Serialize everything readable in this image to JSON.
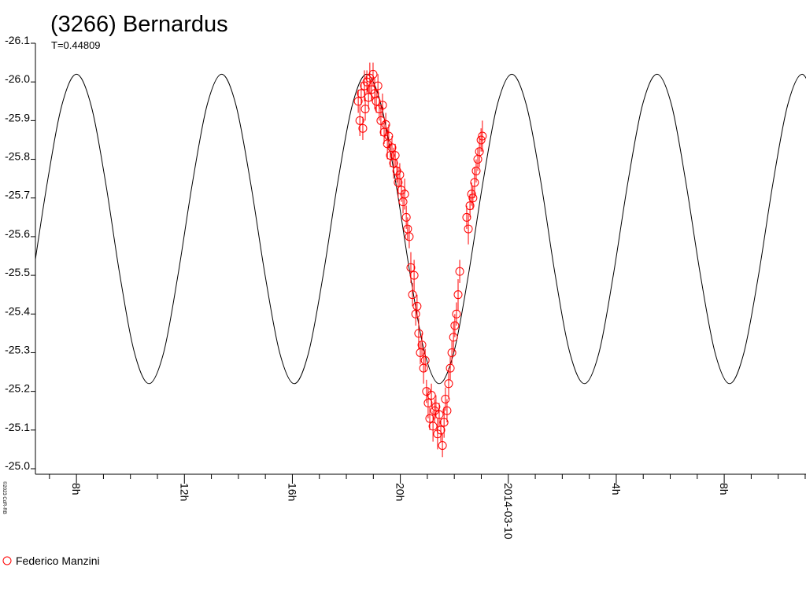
{
  "chart_data": {
    "type": "scatter",
    "title": "(3266) Bernardus",
    "subtitle": "T=0.44809",
    "note": "©2023 CdR-RB",
    "xlim": [
      6.48,
      35.03
    ],
    "xticks": [
      {
        "value": 8,
        "label": "8h"
      },
      {
        "value": 12,
        "label": "12h"
      },
      {
        "value": 16,
        "label": "16h"
      },
      {
        "value": 20,
        "label": "20h"
      },
      {
        "value": 24,
        "label": "2014-03-10"
      },
      {
        "value": 28,
        "label": "4h"
      },
      {
        "value": 32,
        "label": "8h"
      }
    ],
    "xticks_minor": [
      7,
      9,
      10,
      11,
      13,
      14,
      15,
      17,
      18,
      19,
      21,
      22,
      23,
      25,
      26,
      27,
      29,
      30,
      31,
      33,
      34,
      35
    ],
    "ylim": [
      -25.0,
      -26.1
    ],
    "yticks": [
      -26.1,
      {
        "value": -26.0,
        "label": "-26.0"
      },
      -25.9,
      -25.8,
      -25.7,
      -25.6,
      -25.5,
      -25.4,
      -25.3,
      -25.2,
      -25.1,
      {
        "value": -25.0,
        "label": "-25.0"
      }
    ],
    "curve": {
      "color": "#000000",
      "x": [
        6.39,
        6.92,
        7.46,
        8.0,
        8.54,
        9.08,
        9.61,
        10.15,
        10.69,
        11.23,
        11.76,
        12.3,
        12.84,
        13.38,
        13.91,
        14.45,
        14.99,
        15.53,
        16.07,
        16.6,
        17.14,
        17.68,
        18.22,
        18.75,
        19.29,
        19.83,
        20.37,
        20.9,
        21.44,
        21.98,
        22.52,
        23.06,
        23.59,
        24.13,
        24.67,
        25.21,
        25.74,
        26.28,
        26.82,
        27.36,
        27.89,
        28.43,
        28.97,
        29.51,
        30.05,
        30.58,
        31.12,
        31.66,
        32.2,
        32.73,
        33.27,
        33.81,
        34.35,
        34.89,
        35.42
      ],
      "values": [
        -25.5,
        -25.74,
        -25.94,
        -26.02,
        -25.94,
        -25.74,
        -25.5,
        -25.3,
        -25.22,
        -25.3,
        -25.5,
        -25.74,
        -25.94,
        -26.02,
        -25.94,
        -25.74,
        -25.5,
        -25.3,
        -25.22,
        -25.3,
        -25.5,
        -25.74,
        -25.94,
        -26.02,
        -25.94,
        -25.74,
        -25.5,
        -25.3,
        -25.22,
        -25.3,
        -25.5,
        -25.74,
        -25.94,
        -26.02,
        -25.94,
        -25.74,
        -25.5,
        -25.3,
        -25.22,
        -25.3,
        -25.5,
        -25.74,
        -25.94,
        -26.02,
        -25.94,
        -25.74,
        -25.5,
        -25.3,
        -25.22,
        -25.3,
        -25.5,
        -25.74,
        -25.94,
        -26.02,
        -25.94
      ]
    },
    "series": [
      {
        "name": "Federico Manzini",
        "color": "#ff0000",
        "x": [
          18.44,
          18.5,
          18.55,
          18.61,
          18.67,
          18.7,
          18.76,
          18.82,
          18.87,
          18.93,
          18.99,
          19.05,
          19.11,
          19.17,
          19.22,
          19.28,
          19.34,
          19.4,
          19.46,
          19.52,
          19.57,
          19.63,
          19.69,
          19.75,
          19.81,
          19.87,
          19.92,
          19.98,
          20.04,
          20.1,
          20.16,
          20.22,
          20.27,
          20.33,
          20.39,
          20.45,
          20.51,
          20.57,
          20.62,
          20.68,
          20.74,
          20.8,
          20.86,
          20.92,
          20.97,
          21.03,
          21.09,
          21.15,
          21.21,
          21.27,
          21.32,
          21.38,
          21.44,
          21.5,
          21.56,
          21.62,
          21.67,
          21.73,
          21.79,
          21.85,
          21.91,
          21.97,
          22.02,
          22.08,
          22.14,
          22.2,
          22.46,
          22.52,
          22.58,
          22.64,
          22.69,
          22.75,
          22.81,
          22.87,
          22.93,
          22.99,
          23.04
        ],
        "values": [
          -25.95,
          -25.9,
          -25.97,
          -25.88,
          -25.99,
          -25.93,
          -26.0,
          -25.96,
          -26.01,
          -25.98,
          -26.02,
          -25.97,
          -25.95,
          -25.99,
          -25.93,
          -25.9,
          -25.94,
          -25.87,
          -25.89,
          -25.84,
          -25.86,
          -25.81,
          -25.83,
          -25.79,
          -25.81,
          -25.77,
          -25.74,
          -25.76,
          -25.72,
          -25.69,
          -25.71,
          -25.65,
          -25.62,
          -25.6,
          -25.52,
          -25.45,
          -25.5,
          -25.4,
          -25.42,
          -25.35,
          -25.3,
          -25.32,
          -25.26,
          -25.28,
          -25.2,
          -25.17,
          -25.13,
          -25.19,
          -25.11,
          -25.15,
          -25.16,
          -25.09,
          -25.14,
          -25.1,
          -25.06,
          -25.12,
          -25.18,
          -25.15,
          -25.22,
          -25.26,
          -25.3,
          -25.34,
          -25.37,
          -25.4,
          -25.45,
          -25.51,
          -25.65,
          -25.62,
          -25.68,
          -25.71,
          -25.7,
          -25.74,
          -25.77,
          -25.8,
          -25.82,
          -25.85,
          -25.86
        ],
        "errors": [
          0.03,
          0.04,
          0.03,
          0.03,
          0.04,
          0.03,
          0.03,
          0.03,
          0.04,
          0.03,
          0.03,
          0.04,
          0.03,
          0.03,
          0.03,
          0.04,
          0.03,
          0.03,
          0.03,
          0.04,
          0.03,
          0.03,
          0.03,
          0.04,
          0.03,
          0.03,
          0.04,
          0.03,
          0.03,
          0.03,
          0.04,
          0.03,
          0.03,
          0.03,
          0.04,
          0.03,
          0.04,
          0.03,
          0.03,
          0.04,
          0.03,
          0.03,
          0.04,
          0.03,
          0.03,
          0.04,
          0.03,
          0.03,
          0.04,
          0.03,
          0.03,
          0.04,
          0.03,
          0.03,
          0.03,
          0.04,
          0.03,
          0.03,
          0.04,
          0.03,
          0.03,
          0.04,
          0.03,
          0.03,
          0.04,
          0.03,
          0.03,
          0.04,
          0.03,
          0.03,
          0.03,
          0.04,
          0.03,
          0.03,
          0.04,
          0.03,
          0.04
        ]
      }
    ]
  }
}
